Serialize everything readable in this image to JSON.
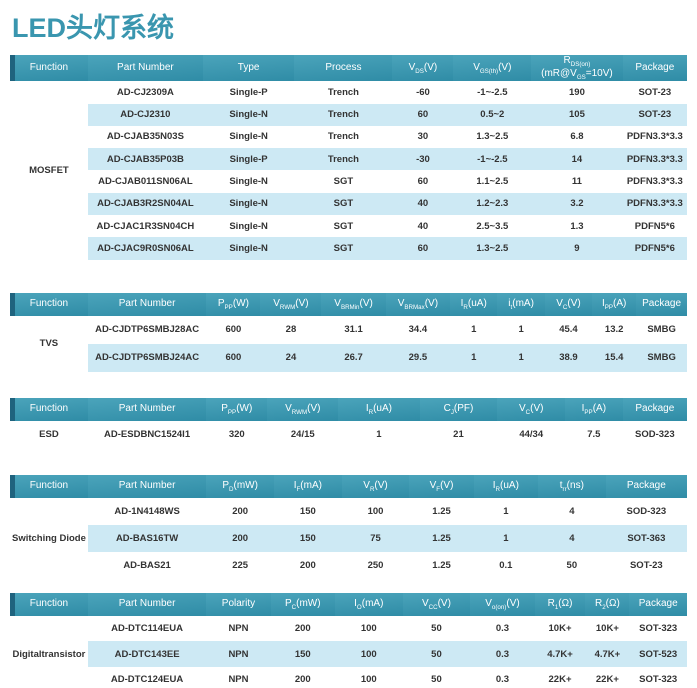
{
  "page": {
    "title": "LED头灯系统"
  },
  "colors": {
    "title_teal": "#3a96af",
    "header_teal_top": "#4ba4bb",
    "header_teal_bottom": "#2f8ca6",
    "header_left_edge": "#1f637e",
    "row_alt_blue": "#cde9f4",
    "body_text": "#333333",
    "header_text": "#ffffff",
    "page_background": "#ffffff"
  },
  "tables": [
    {
      "id": "mosfet",
      "function": "MOSFET",
      "columns": [
        "Function",
        "Part Number",
        "Type",
        "Process",
        "V[DS](V)",
        "V[GS(th)](V)",
        "R[DS(on)]\n(mR@V[GS]=10V)",
        "Package"
      ],
      "rows": [
        [
          "AD-CJ2309A",
          "Single-P",
          "Trench",
          "-60",
          "-1~-2.5",
          "190",
          "SOT-23"
        ],
        [
          "AD-CJ2310",
          "Single-N",
          "Trench",
          "60",
          "0.5~2",
          "105",
          "SOT-23"
        ],
        [
          "AD-CJAB35N03S",
          "Single-N",
          "Trench",
          "30",
          "1.3~2.5",
          "6.8",
          "PDFN3.3*3.3"
        ],
        [
          "AD-CJAB35P03B",
          "Single-P",
          "Trench",
          "-30",
          "-1~-2.5",
          "14",
          "PDFN3.3*3.3"
        ],
        [
          "AD-CJAB011SN06AL",
          "Single-N",
          "SGT",
          "60",
          "1.1~2.5",
          "11",
          "PDFN3.3*3.3"
        ],
        [
          "AD-CJAB3R2SN04AL",
          "Single-N",
          "SGT",
          "40",
          "1.2~2.3",
          "3.2",
          "PDFN3.3*3.3"
        ],
        [
          "AD-CJAC1R3SN04CH",
          "Single-N",
          "SGT",
          "40",
          "2.5~3.5",
          "1.3",
          "PDFN5*6"
        ],
        [
          "AD-CJAC9R0SN06AL",
          "Single-N",
          "SGT",
          "60",
          "1.3~2.5",
          "9",
          "PDFN5*6"
        ]
      ]
    },
    {
      "id": "tvs",
      "function": "TVS",
      "columns": [
        "Function",
        "Part Number",
        "P[PP](W)",
        "V[RWM](V)",
        "V[BRMin](V)",
        "V[BRMax](V)",
        "I[R](uA)",
        "i[t](mA)",
        "V[C](V)",
        "I[PP](A)",
        "Package"
      ],
      "rows": [
        [
          "AD-CJDTP6SMBJ28AC",
          "600",
          "28",
          "31.1",
          "34.4",
          "1",
          "1",
          "45.4",
          "13.2",
          "SMBG"
        ],
        [
          "AD-CJDTP6SMBJ24AC",
          "600",
          "24",
          "26.7",
          "29.5",
          "1",
          "1",
          "38.9",
          "15.4",
          "SMBG"
        ]
      ]
    },
    {
      "id": "esd",
      "function": "ESD",
      "columns": [
        "Function",
        "Part Number",
        "P[PP](W)",
        "V[RWM](V)",
        "I[R](uA)",
        "C[J](PF)",
        "V[C](V)",
        "I[PP](A)",
        "Package"
      ],
      "rows": [
        [
          "AD-ESDBNC1524I1",
          "320",
          "24/15",
          "1",
          "21",
          "44/34",
          "7.5",
          "SOD-323"
        ]
      ]
    },
    {
      "id": "diode",
      "function": "Switching Diode",
      "columns": [
        "Function",
        "Part Number",
        "P[D](mW)",
        "I[F](mA)",
        "V[R](V)",
        "V[F](V)",
        "I[R](uA)",
        "t[rr](ns)",
        "Package"
      ],
      "rows": [
        [
          "AD-1N4148WS",
          "200",
          "150",
          "100",
          "1.25",
          "1",
          "4",
          "SOD-323"
        ],
        [
          "AD-BAS16TW",
          "200",
          "150",
          "75",
          "1.25",
          "1",
          "4",
          "SOT-363"
        ],
        [
          "AD-BAS21",
          "225",
          "200",
          "250",
          "1.25",
          "0.1",
          "50",
          "SOT-23"
        ]
      ]
    },
    {
      "id": "dtr",
      "function": "Digitaltransistor",
      "columns": [
        "Function",
        "Part Number",
        "Polarity",
        "P[C](mW)",
        "I[O](mA)",
        "V[CC](V)",
        "V[o(on)](V)",
        "R[1](Ω)",
        "R[2](Ω)",
        "Package"
      ],
      "rows": [
        [
          "AD-DTC114EUA",
          "NPN",
          "200",
          "100",
          "50",
          "0.3",
          "10K+",
          "10K+",
          "SOT-323"
        ],
        [
          "AD-DTC143EE",
          "NPN",
          "150",
          "100",
          "50",
          "0.3",
          "4.7K+",
          "4.7K+",
          "SOT-523"
        ],
        [
          "AD-DTC124EUA",
          "NPN",
          "200",
          "100",
          "50",
          "0.3",
          "22K+",
          "22K+",
          "SOT-323"
        ]
      ]
    }
  ]
}
